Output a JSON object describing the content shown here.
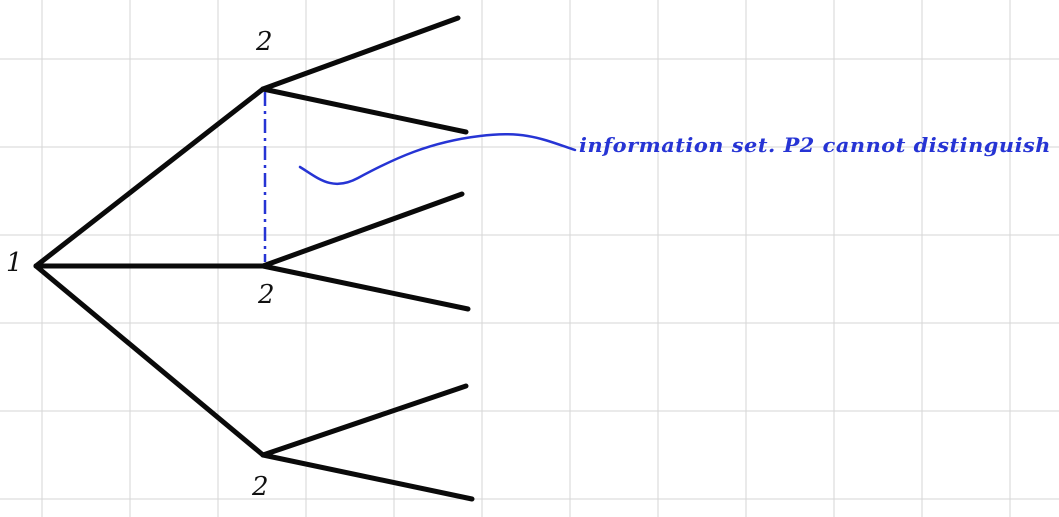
{
  "colors": {
    "grid": "#d6d6d6",
    "ink": "#0a0a0a",
    "annotation": "#2634d4"
  },
  "tree": {
    "root_label": "1",
    "top_node_label": "2",
    "middle_node_label": "2",
    "bottom_node_label": "2"
  },
  "annotation": {
    "text": "information set. P2 cannot distinguish"
  }
}
